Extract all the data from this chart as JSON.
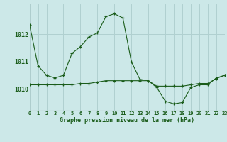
{
  "title": "Graphe pression niveau de la mer (hPa)",
  "bg_color": "#cce8e8",
  "grid_color": "#b0d0d0",
  "line_color": "#1a5c1a",
  "border_color": "#888888",
  "x_values": [
    0,
    1,
    2,
    3,
    4,
    5,
    6,
    7,
    8,
    9,
    10,
    11,
    12,
    13,
    14,
    15,
    16,
    17,
    18,
    19,
    20,
    21,
    22,
    23
  ],
  "y_main": [
    1012.35,
    1010.85,
    1010.5,
    1010.4,
    1010.5,
    1011.3,
    1011.55,
    1011.9,
    1012.05,
    1012.65,
    1012.75,
    1012.6,
    1011.0,
    1010.35,
    1010.3,
    1010.05,
    1009.55,
    1009.45,
    1009.5,
    1010.05,
    1010.15,
    1010.15,
    1010.4,
    1010.5
  ],
  "y_flat": [
    1010.15,
    1010.15,
    1010.15,
    1010.15,
    1010.15,
    1010.15,
    1010.2,
    1010.2,
    1010.25,
    1010.3,
    1010.3,
    1010.3,
    1010.3,
    1010.3,
    1010.3,
    1010.1,
    1010.1,
    1010.1,
    1010.1,
    1010.15,
    1010.2,
    1010.2,
    1010.38,
    1010.5
  ],
  "ytick_labels": [
    "1010",
    "1011",
    "1012"
  ],
  "ytick_values": [
    1010,
    1011,
    1012
  ],
  "xlim": [
    0,
    23
  ],
  "ylim": [
    1009.2,
    1013.1
  ]
}
